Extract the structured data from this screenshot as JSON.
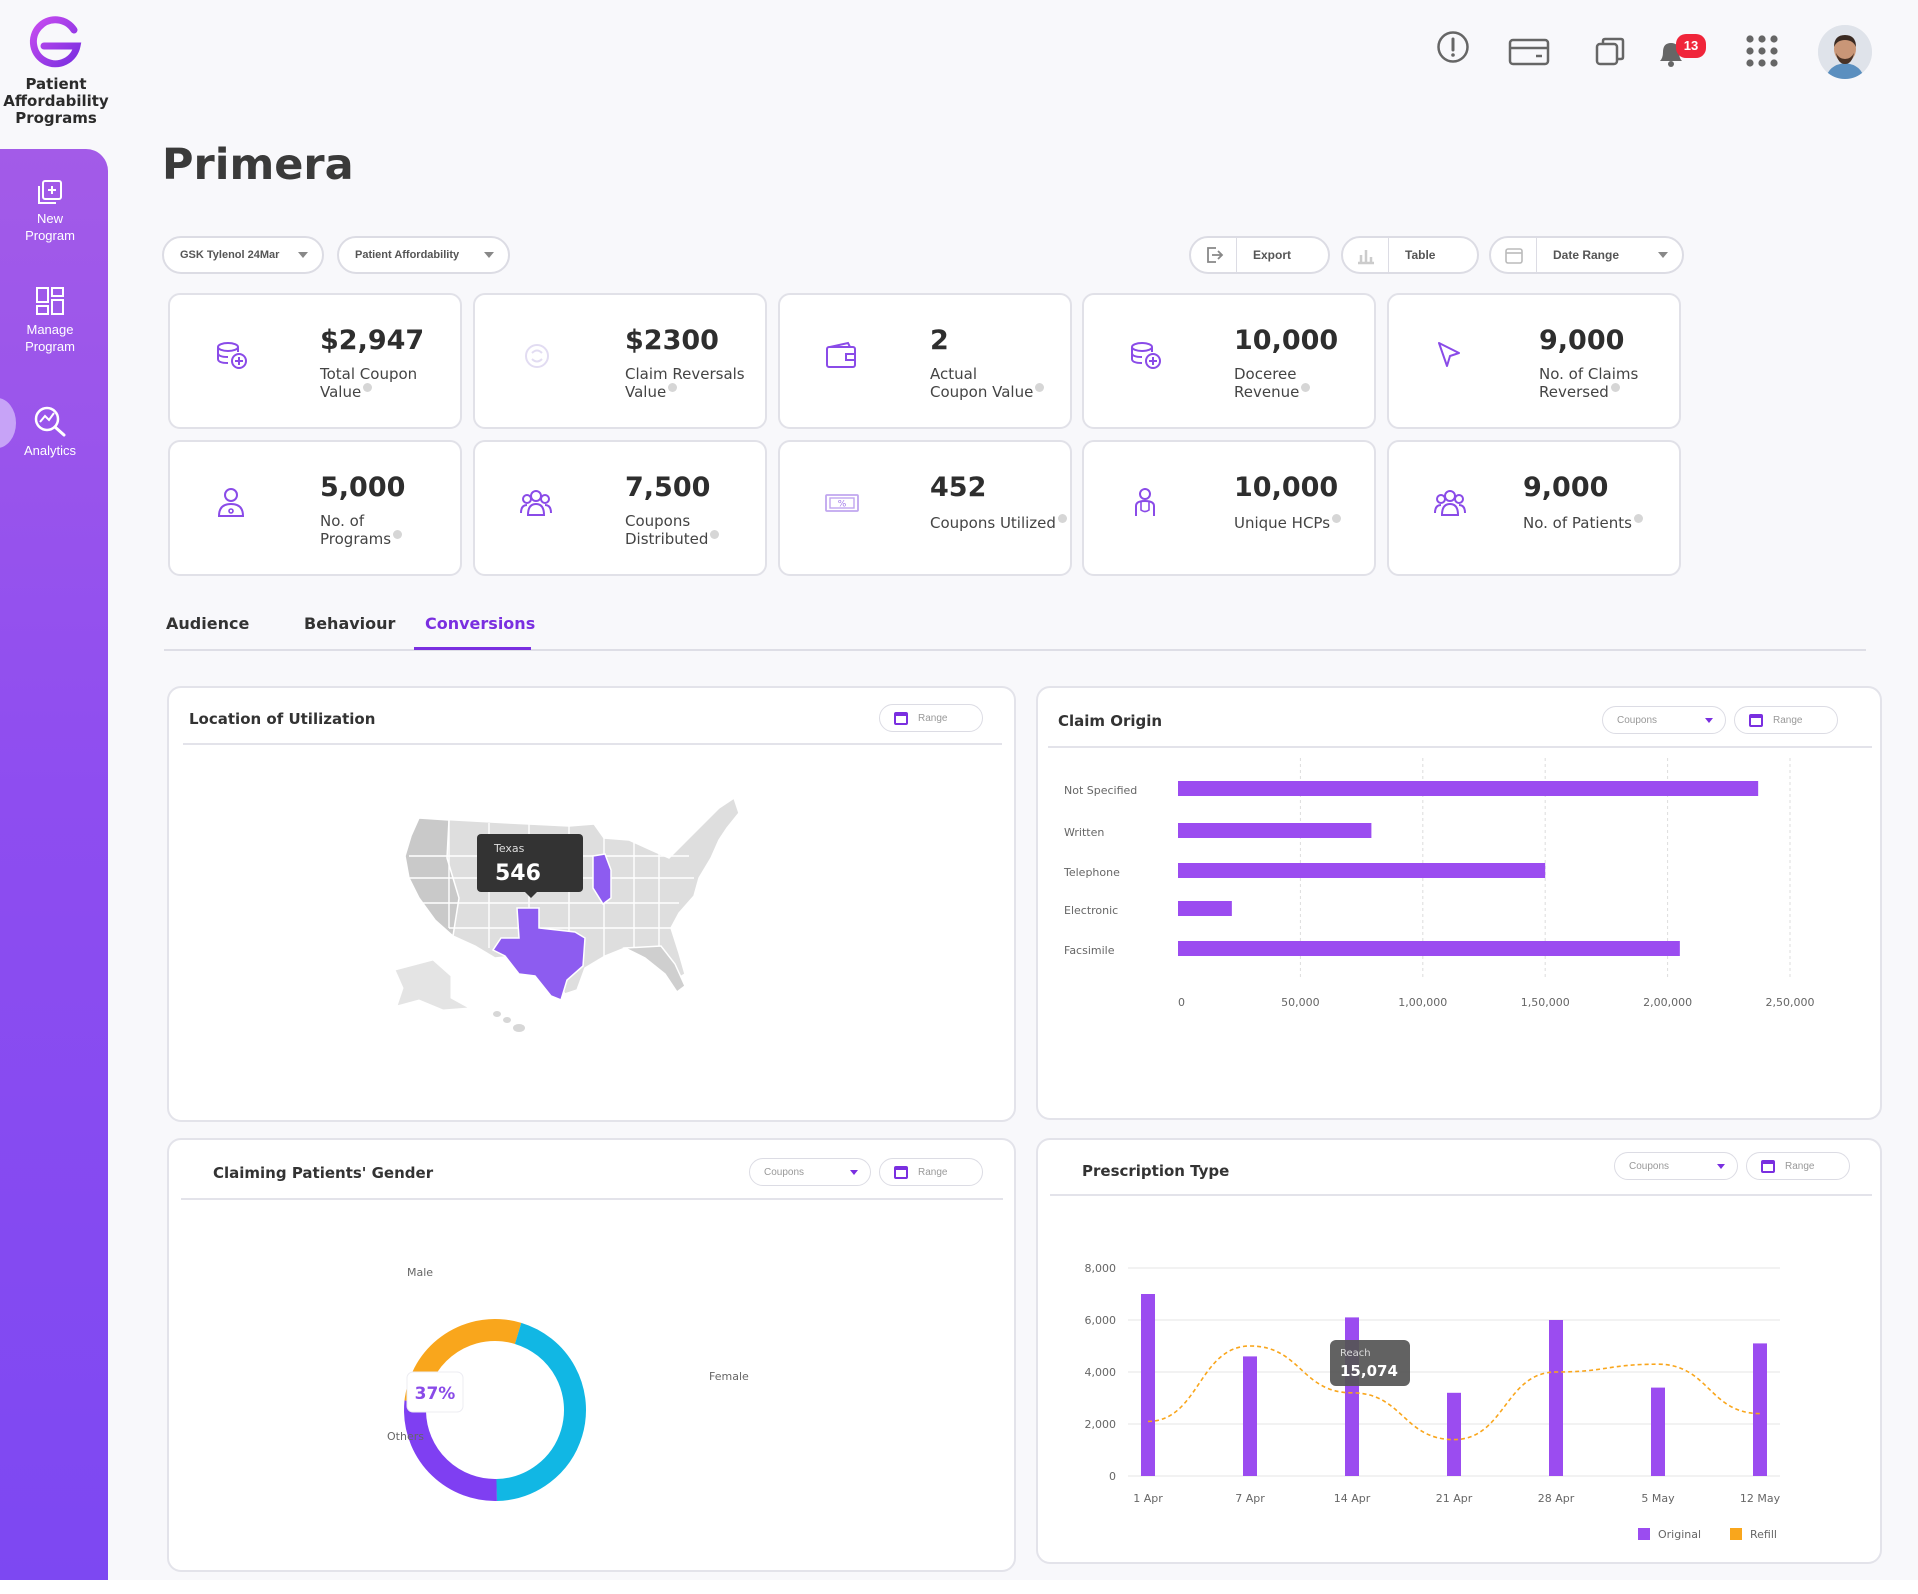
{
  "brand": {
    "name_line1": "Patient",
    "name_line2": "Affordability",
    "name_line3": "Programs",
    "accent": "#7a2fe0"
  },
  "sidebar": {
    "items": [
      {
        "icon": "new-program-icon",
        "label_line1": "New",
        "label_line2": "Program"
      },
      {
        "icon": "manage-program-icon",
        "label_line1": "Manage",
        "label_line2": "Program"
      },
      {
        "icon": "analytics-icon",
        "label_line1": "Analytics",
        "label_line2": ""
      }
    ]
  },
  "topbar": {
    "icons": [
      "alert-icon",
      "card-icon",
      "copy-icon",
      "bell-icon",
      "apps-grid-icon"
    ],
    "notification_count": "13"
  },
  "page": {
    "title": "Primera"
  },
  "filters": {
    "brand_select": "GSK Tylenol 24Mar",
    "program_select": "Patient Affordability",
    "export_label": "Export",
    "table_label": "Table",
    "date_range_label": "Date Range"
  },
  "kpis": [
    {
      "value": "$2,947",
      "label1": "Total Coupon",
      "label2": "Value",
      "icon": "coins-add-icon"
    },
    {
      "value": "$2300",
      "label1": "Claim Reversals",
      "label2": "Value",
      "icon": "reversal-icon"
    },
    {
      "value": "2",
      "label1": "Actual",
      "label2": "Coupon Value",
      "icon": "wallet-icon"
    },
    {
      "value": "10,000",
      "label1": "Doceree",
      "label2": "Revenue",
      "icon": "coins-add-icon"
    },
    {
      "value": "9,000",
      "label1": "No. of Claims",
      "label2": "Reversed",
      "icon": "cursor-icon"
    },
    {
      "value": "5,000",
      "label1": "No. of",
      "label2": "Programs",
      "icon": "doctor-icon"
    },
    {
      "value": "7,500",
      "label1": "Coupons",
      "label2": "Distributed",
      "icon": "group-icon"
    },
    {
      "value": "452",
      "label1": "Coupons Utilized",
      "label2": "",
      "icon": "coupon-icon"
    },
    {
      "value": "10,000",
      "label1": "Unique HCPs",
      "label2": "",
      "icon": "hcp-icon"
    },
    {
      "value": "9,000",
      "label1": "No. of Patients",
      "label2": "",
      "icon": "group-icon"
    }
  ],
  "tabs": [
    {
      "label": "Audience",
      "active": false
    },
    {
      "label": "Behaviour",
      "active": false
    },
    {
      "label": "Conversions",
      "active": true
    }
  ],
  "panels": {
    "location": {
      "title": "Location of Utilization",
      "range_label": "Range",
      "tooltip_state": "Texas",
      "tooltip_value": "546"
    },
    "claim_origin": {
      "title": "Claim Origin",
      "coupons_label": "Coupons",
      "range_label": "Range"
    },
    "gender": {
      "title": "Claiming Patients' Gender",
      "coupons_label": "Coupons",
      "range_label": "Range",
      "center_label": "37%"
    },
    "prescription": {
      "title": "Prescription Type",
      "coupons_label": "Coupons",
      "range_label": "Range",
      "tooltip_label": "Reach",
      "tooltip_value": "15,074"
    }
  },
  "chart_data": [
    {
      "id": "claim_origin",
      "type": "bar",
      "orientation": "horizontal",
      "categories": [
        "Not Specified",
        "Written",
        "Telephone",
        "Electronic",
        "Facsimile"
      ],
      "values": [
        237000,
        79000,
        150000,
        22000,
        205000
      ],
      "x_ticks": [
        "0",
        "50,000",
        "1,00,000",
        "1,50,000",
        "2,00,000",
        "2,50,000"
      ],
      "xlim": [
        0,
        250000
      ],
      "color": "#9b4cf0"
    },
    {
      "id": "gender",
      "type": "pie",
      "donut": true,
      "labels": [
        "Male",
        "Female",
        "Others"
      ],
      "values": [
        28,
        45,
        27
      ],
      "colors": [
        "#f9a61c",
        "#11b7e4",
        "#7f3ff2"
      ],
      "label_texts": [
        "Male",
        "Female",
        "Others"
      ]
    },
    {
      "id": "prescription",
      "type": "bar",
      "categories": [
        "1 Apr",
        "7 Apr",
        "14 Apr",
        "21 Apr",
        "28 Apr",
        "5 May",
        "12 May"
      ],
      "ylim": [
        0,
        8000
      ],
      "y_ticks": [
        "0",
        "2,000",
        "4,000",
        "6,000",
        "8,000"
      ],
      "series": [
        {
          "name": "Original",
          "values": [
            7000,
            4600,
            6100,
            3200,
            6000,
            3400,
            5100
          ],
          "color": "#9b4cf0"
        },
        {
          "name": "Refill",
          "values": [
            2100,
            5000,
            3200,
            1400,
            4000,
            4300,
            2400
          ],
          "color": "#f9a61c",
          "style": "dashed-line"
        }
      ]
    }
  ]
}
